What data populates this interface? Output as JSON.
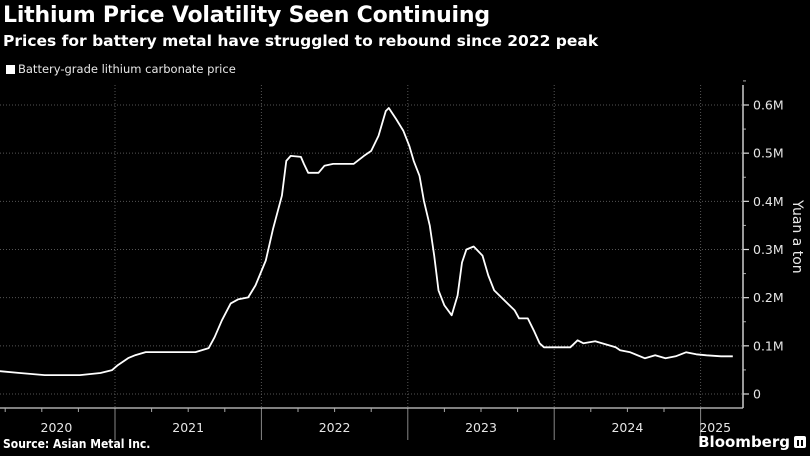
{
  "header": {
    "title": "Lithium Price Volatility Seen Continuing",
    "subtitle": "Prices for battery metal have struggled to rebound since 2022 peak"
  },
  "legend": {
    "label": "Battery-grade lithium carbonate price",
    "color": "#ffffff"
  },
  "footer": {
    "source": "Source: Asian Metal Inc.",
    "brand": "Bloomberg",
    "brand_icon": "bloomberg-logo-icon"
  },
  "chart_data": {
    "type": "line",
    "title": "Lithium Price Volatility Seen Continuing",
    "subtitle": "Prices for battery metal have struggled to rebound since 2022 peak",
    "xlabel": "",
    "ylabel": "Yuan a ton",
    "ylim": [
      0,
      650000
    ],
    "xlim": [
      2020.21,
      2025.24
    ],
    "grid": true,
    "legend_position": "top-left",
    "y_ticks": [
      {
        "value": 0,
        "label": "0"
      },
      {
        "value": 100000,
        "label": "0.1M"
      },
      {
        "value": 200000,
        "label": "0.2M"
      },
      {
        "value": 300000,
        "label": "0.3M"
      },
      {
        "value": 400000,
        "label": "0.4M"
      },
      {
        "value": 500000,
        "label": "0.5M"
      },
      {
        "value": 600000,
        "label": "0.6M"
      }
    ],
    "x_year_boundaries": [
      2021,
      2022,
      2023,
      2024,
      2025
    ],
    "x_tick_labels": [
      {
        "label": "2020",
        "center": 2020.6
      },
      {
        "label": "2021",
        "center": 2021.5
      },
      {
        "label": "2022",
        "center": 2022.5
      },
      {
        "label": "2023",
        "center": 2023.5
      },
      {
        "label": "2024",
        "center": 2024.5
      },
      {
        "label": "2025",
        "center": 2025.1
      }
    ],
    "series": [
      {
        "name": "Battery-grade lithium carbonate price",
        "color": "#ffffff",
        "points": [
          [
            2020.21,
            47600
          ],
          [
            2020.35,
            43500
          ],
          [
            2020.52,
            39300
          ],
          [
            2020.76,
            39300
          ],
          [
            2020.9,
            43500
          ],
          [
            2020.98,
            49700
          ],
          [
            2021.02,
            60000
          ],
          [
            2021.09,
            74500
          ],
          [
            2021.14,
            80700
          ],
          [
            2021.21,
            86900
          ],
          [
            2021.31,
            86900
          ],
          [
            2021.55,
            86900
          ],
          [
            2021.64,
            95200
          ],
          [
            2021.68,
            118000
          ],
          [
            2021.73,
            153000
          ],
          [
            2021.79,
            188000
          ],
          [
            2021.84,
            196500
          ],
          [
            2021.91,
            200600
          ],
          [
            2021.96,
            225400
          ],
          [
            2022.03,
            277100
          ],
          [
            2022.08,
            343300
          ],
          [
            2022.14,
            411600
          ],
          [
            2022.17,
            484000
          ],
          [
            2022.2,
            494400
          ],
          [
            2022.27,
            492300
          ],
          [
            2022.29,
            477800
          ],
          [
            2022.32,
            459200
          ],
          [
            2022.39,
            459200
          ],
          [
            2022.43,
            473700
          ],
          [
            2022.49,
            477800
          ],
          [
            2022.63,
            477800
          ],
          [
            2022.7,
            494400
          ],
          [
            2022.75,
            504800
          ],
          [
            2022.8,
            535800
          ],
          [
            2022.85,
            587500
          ],
          [
            2022.87,
            593700
          ],
          [
            2022.92,
            571000
          ],
          [
            2022.97,
            546200
          ],
          [
            2023.01,
            515100
          ],
          [
            2023.04,
            484000
          ],
          [
            2023.08,
            453000
          ],
          [
            2023.11,
            401200
          ],
          [
            2023.15,
            349400
          ],
          [
            2023.18,
            287400
          ],
          [
            2023.21,
            215000
          ],
          [
            2023.25,
            184000
          ],
          [
            2023.3,
            163300
          ],
          [
            2023.34,
            204700
          ],
          [
            2023.37,
            273000
          ],
          [
            2023.4,
            300000
          ],
          [
            2023.45,
            306200
          ],
          [
            2023.51,
            287400
          ],
          [
            2023.55,
            246000
          ],
          [
            2023.59,
            215000
          ],
          [
            2023.66,
            194300
          ],
          [
            2023.73,
            173600
          ],
          [
            2023.76,
            157000
          ],
          [
            2023.82,
            157000
          ],
          [
            2023.86,
            132200
          ],
          [
            2023.9,
            105300
          ],
          [
            2023.93,
            97000
          ],
          [
            2024.0,
            97000
          ],
          [
            2024.11,
            97000
          ],
          [
            2024.16,
            111500
          ],
          [
            2024.2,
            105300
          ],
          [
            2024.28,
            109400
          ],
          [
            2024.35,
            103200
          ],
          [
            2024.42,
            97000
          ],
          [
            2024.45,
            90800
          ],
          [
            2024.52,
            86600
          ],
          [
            2024.62,
            74200
          ],
          [
            2024.69,
            80400
          ],
          [
            2024.76,
            74200
          ],
          [
            2024.83,
            78300
          ],
          [
            2024.9,
            86600
          ],
          [
            2024.97,
            82400
          ],
          [
            2025.04,
            80400
          ],
          [
            2025.14,
            78300
          ],
          [
            2025.22,
            78300
          ]
        ]
      }
    ]
  }
}
